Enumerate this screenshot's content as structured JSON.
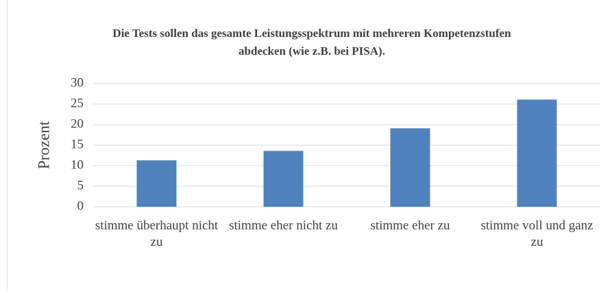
{
  "chart_data": {
    "type": "bar",
    "title": "Die Tests sollen das gesamte Leistungsspektrum mit mehreren Kompetenzstufen abdecken (wie z.B. bei PISA).",
    "y_label": "Prozent",
    "categories": [
      "stimme überhaupt nicht zu",
      "stimme eher nicht zu",
      "stimme eher zu",
      "stimme voll und ganz zu"
    ],
    "values": [
      11.3,
      13.6,
      19.1,
      26.1
    ],
    "color": "#4f81bd",
    "ylim": [
      0,
      30
    ],
    "yticks": [
      0,
      5,
      10,
      15,
      20,
      25,
      30
    ],
    "grid": true
  }
}
